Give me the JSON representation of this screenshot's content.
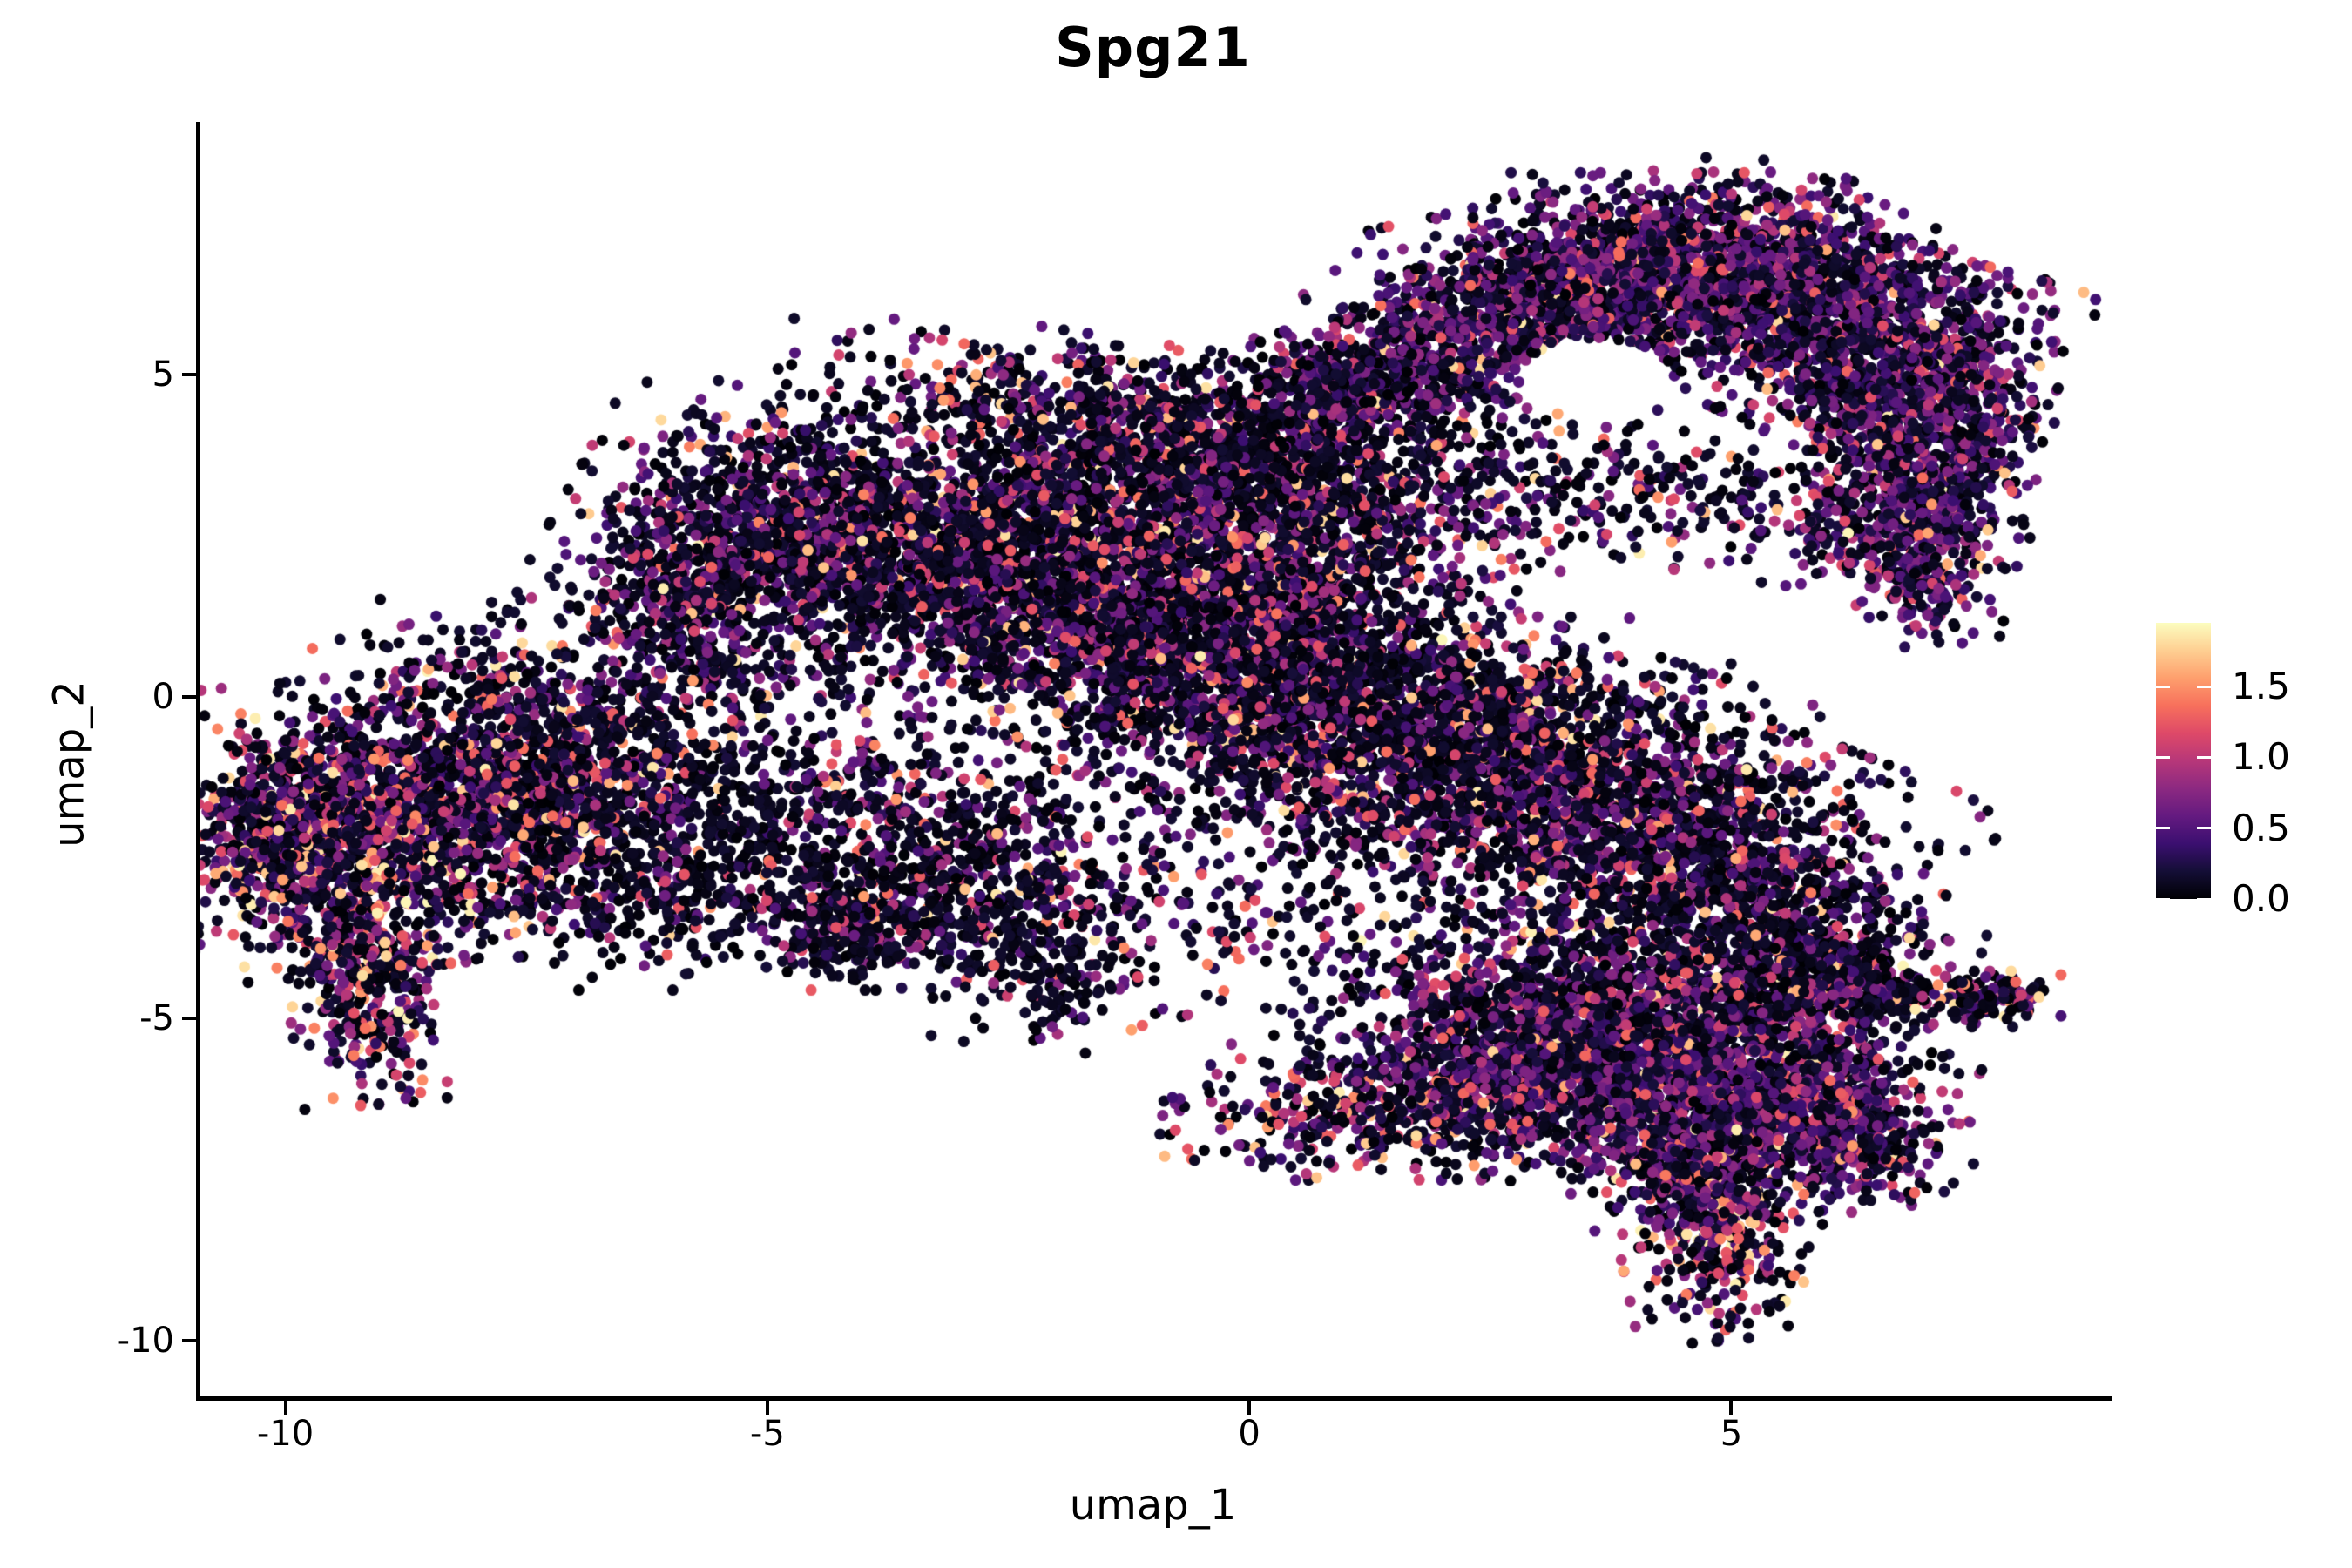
{
  "chart_data": {
    "type": "scatter",
    "variant": "umap-feature-plot",
    "title": "Spg21",
    "xlabel": "umap_1",
    "ylabel": "umap_2",
    "x_range": [
      -10.9,
      8.9
    ],
    "y_range": [
      -10.9,
      8.9
    ],
    "grid": false,
    "x_ticks": [
      {
        "v": -10,
        "label": "-10"
      },
      {
        "v": -5,
        "label": "-5"
      },
      {
        "v": 0,
        "label": "0"
      },
      {
        "v": 5,
        "label": "5"
      }
    ],
    "y_ticks": [
      {
        "v": 5,
        "label": "5"
      },
      {
        "v": 0,
        "label": "0"
      },
      {
        "v": -5,
        "label": "-5"
      },
      {
        "v": -10,
        "label": "-10"
      }
    ],
    "colorbar": {
      "position": "right",
      "vmin": 0.0,
      "vmax": 1.95,
      "ticks": [
        {
          "v": 1.5,
          "label": "1.5"
        },
        {
          "v": 1.0,
          "label": "1.0"
        },
        {
          "v": 0.5,
          "label": "0.5"
        },
        {
          "v": 0.0,
          "label": "0.0"
        }
      ],
      "colormap": "magma",
      "stops": [
        {
          "t": 0.0,
          "color": "#000004"
        },
        {
          "t": 0.1,
          "color": "#140e36"
        },
        {
          "t": 0.2,
          "color": "#3b0f70"
        },
        {
          "t": 0.3,
          "color": "#641a80"
        },
        {
          "t": 0.4,
          "color": "#8c2981"
        },
        {
          "t": 0.5,
          "color": "#b73779"
        },
        {
          "t": 0.6,
          "color": "#de4968"
        },
        {
          "t": 0.7,
          "color": "#f7705c"
        },
        {
          "t": 0.8,
          "color": "#fe9f6d"
        },
        {
          "t": 0.9,
          "color": "#fecf92"
        },
        {
          "t": 1.0,
          "color": "#fcfdbf"
        }
      ]
    },
    "point_radius_px": 6.5,
    "seed": 1337,
    "value_bands": [
      [
        0.0,
        0.18
      ],
      [
        0.2,
        0.8
      ],
      [
        0.8,
        1.35
      ],
      [
        1.35,
        1.92
      ]
    ],
    "value_mixes": {
      "default": [
        0.62,
        0.24,
        0.1,
        0.04
      ],
      "purple": [
        0.42,
        0.44,
        0.12,
        0.02
      ],
      "pink": [
        0.47,
        0.24,
        0.19,
        0.1
      ],
      "dark": [
        0.8,
        0.13,
        0.05,
        0.02
      ]
    },
    "exclusion_holes": [
      {
        "cx": 3.6,
        "cy": 4.95,
        "rx": 0.8,
        "ry": 0.62
      }
    ],
    "cluster_fields": [
      "name",
      "cx",
      "cy",
      "sx",
      "sy",
      "rot_deg",
      "n",
      "mix"
    ],
    "clusters": [
      [
        "w1",
        1.7,
        5.1,
        0.85,
        0.5,
        25,
        600,
        "purple"
      ],
      [
        "w2",
        3.1,
        6.2,
        1.0,
        0.65,
        18,
        950,
        "purple"
      ],
      [
        "w3",
        4.6,
        6.7,
        0.95,
        0.6,
        0,
        1050,
        "purple"
      ],
      [
        "w4",
        5.8,
        6.0,
        0.85,
        0.75,
        -35,
        1000,
        "purple"
      ],
      [
        "w5",
        6.8,
        4.7,
        0.6,
        0.9,
        -22,
        850,
        "purple"
      ],
      [
        "w6",
        7.15,
        3.2,
        0.45,
        0.8,
        -12,
        500,
        "purple"
      ],
      [
        "w6b",
        6.95,
        1.8,
        0.28,
        0.55,
        10,
        150,
        "purple"
      ],
      [
        "ws",
        6.5,
        2.6,
        0.6,
        0.5,
        -20,
        160,
        "purple"
      ],
      [
        "b1",
        0.7,
        4.6,
        0.7,
        0.45,
        35,
        280,
        "default"
      ],
      [
        "b2",
        2.0,
        3.3,
        0.9,
        0.7,
        10,
        280,
        "default"
      ],
      [
        "b3",
        4.3,
        3.1,
        1.1,
        0.55,
        -10,
        220,
        "default"
      ],
      [
        "r1",
        -1.6,
        4.4,
        1.4,
        0.5,
        -12,
        550,
        "default"
      ],
      [
        "mur2",
        -0.8,
        3.4,
        1.0,
        0.8,
        -20,
        800,
        "default"
      ],
      [
        "mur",
        0.5,
        2.6,
        0.9,
        0.9,
        -25,
        700,
        "default"
      ],
      [
        "m1",
        -4.7,
        2.7,
        1.0,
        0.75,
        -20,
        850,
        "default"
      ],
      [
        "m1b",
        -5.8,
        1.9,
        0.45,
        0.55,
        -15,
        240,
        "default"
      ],
      [
        "m2",
        -3.2,
        2.3,
        1.05,
        0.9,
        -22,
        1150,
        "default"
      ],
      [
        "m3",
        -1.8,
        1.5,
        1.05,
        0.95,
        -22,
        1250,
        "default"
      ],
      [
        "m4",
        -0.4,
        0.7,
        1.05,
        0.95,
        -20,
        1200,
        "default"
      ],
      [
        "m5",
        0.9,
        -0.1,
        1.05,
        0.95,
        -20,
        1100,
        "default"
      ],
      [
        "m6",
        2.2,
        -0.9,
        1.05,
        0.95,
        -20,
        1000,
        "default"
      ],
      [
        "m7",
        3.6,
        -1.6,
        1.1,
        0.95,
        -25,
        950,
        "default"
      ],
      [
        "m8",
        4.8,
        -2.5,
        1.0,
        0.9,
        -30,
        800,
        "default"
      ],
      [
        "m9",
        5.6,
        -3.6,
        0.8,
        0.6,
        -30,
        500,
        "default"
      ],
      [
        "m9b",
        6.0,
        -4.4,
        0.5,
        0.35,
        -10,
        240,
        "default"
      ],
      [
        "mlow",
        -3.3,
        -2.5,
        1.15,
        0.85,
        -15,
        750,
        "default"
      ],
      [
        "mt",
        -4.2,
        -3.6,
        0.45,
        0.4,
        0,
        240,
        "dark"
      ],
      [
        "t1a",
        6.4,
        -4.55,
        0.55,
        0.17,
        -5,
        140,
        "pink"
      ],
      [
        "t1b",
        7.7,
        -4.7,
        0.3,
        0.18,
        0,
        130,
        "pink"
      ],
      [
        "l0",
        -10.0,
        -2.1,
        0.45,
        0.75,
        0,
        520,
        "pink"
      ],
      [
        "l1",
        -8.7,
        -1.9,
        1.15,
        0.95,
        8,
        1500,
        "pink"
      ],
      [
        "l2",
        -7.4,
        -1.3,
        0.85,
        0.8,
        0,
        800,
        "default"
      ],
      [
        "l3",
        -9.2,
        -4.3,
        0.34,
        0.85,
        6,
        420,
        "pink"
      ],
      [
        "lm",
        -5.7,
        0.8,
        0.9,
        0.85,
        0,
        500,
        "default"
      ],
      [
        "la",
        -7.8,
        0.3,
        0.8,
        0.55,
        0,
        140,
        "default"
      ],
      [
        "lb",
        -6.1,
        -3.0,
        0.8,
        0.65,
        0,
        240,
        "dark"
      ],
      [
        "sf1",
        -5.3,
        -2.0,
        1.3,
        0.9,
        0,
        400,
        "dark"
      ],
      [
        "cs",
        0.3,
        -2.9,
        1.5,
        1.1,
        0,
        360,
        "default"
      ],
      [
        "s1",
        -2.0,
        -4.6,
        0.35,
        0.33,
        0,
        90,
        "dark"
      ],
      [
        "s2",
        -2.4,
        -3.6,
        0.55,
        0.45,
        0,
        150,
        "dark"
      ],
      [
        "s3",
        1.0,
        -6.6,
        0.9,
        0.38,
        0,
        260,
        "pink"
      ],
      [
        "s3b",
        1.4,
        -5.8,
        0.75,
        0.4,
        0,
        110,
        "default"
      ],
      [
        "br0",
        2.3,
        -6.3,
        0.7,
        0.5,
        0,
        200,
        "default"
      ],
      [
        "br1",
        3.0,
        -5.5,
        0.95,
        0.7,
        -18,
        850,
        "purple"
      ],
      [
        "br2",
        4.3,
        -5.9,
        0.95,
        0.75,
        0,
        1000,
        "purple"
      ],
      [
        "br3",
        5.5,
        -6.3,
        0.75,
        0.72,
        -20,
        650,
        "purple"
      ],
      [
        "br3b",
        6.3,
        -6.9,
        0.5,
        0.38,
        -35,
        280,
        "purple"
      ],
      [
        "br4",
        4.0,
        -4.6,
        1.15,
        0.65,
        -10,
        700,
        "default"
      ],
      [
        "br5",
        4.8,
        -8.2,
        0.42,
        0.75,
        8,
        430,
        "pink"
      ],
      [
        "br6",
        4.6,
        -7.2,
        0.6,
        0.5,
        0,
        330,
        "purple"
      ]
    ]
  }
}
